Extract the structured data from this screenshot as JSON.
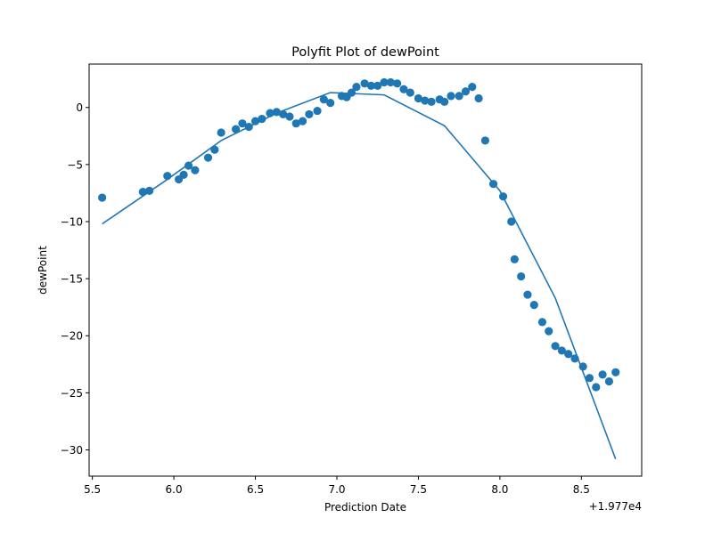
{
  "chart_data": {
    "type": "scatter",
    "title": "Polyfit Plot of dewPoint",
    "xlabel": "Prediction Date",
    "ylabel": "dewPoint",
    "x_offset_label": "+1.977e4",
    "xlim": [
      5.48,
      8.87
    ],
    "ylim": [
      -32.3,
      3.8
    ],
    "x_ticks": [
      5.5,
      6.0,
      6.5,
      7.0,
      7.5,
      8.0,
      8.5
    ],
    "x_tick_labels": [
      "5.5",
      "6.0",
      "6.5",
      "7.0",
      "7.5",
      "8.0",
      "8.5"
    ],
    "y_ticks": [
      0,
      -5,
      -10,
      -15,
      -20,
      -25,
      -30
    ],
    "y_tick_labels": [
      "0",
      "−5",
      "−10",
      "−15",
      "−20",
      "−25",
      "−30"
    ],
    "grid": false,
    "colors": {
      "series": "#1f77b4",
      "axes": "#000000"
    },
    "series": [
      {
        "kind": "scatter",
        "x": [
          5.56,
          5.81,
          5.85,
          5.96,
          6.03,
          6.06,
          6.09,
          6.13,
          6.21,
          6.25,
          6.29,
          6.38,
          6.42,
          6.46,
          6.5,
          6.54,
          6.59,
          6.63,
          6.67,
          6.71,
          6.75,
          6.79,
          6.83,
          6.88,
          6.92,
          6.96,
          7.03,
          7.06,
          7.09,
          7.12,
          7.17,
          7.21,
          7.25,
          7.29,
          7.33,
          7.37,
          7.41,
          7.45,
          7.5,
          7.54,
          7.58,
          7.63,
          7.66,
          7.7,
          7.75,
          7.79,
          7.83,
          7.87,
          7.91,
          7.96,
          8.02,
          8.07,
          8.09,
          8.13,
          8.17,
          8.21,
          8.26,
          8.3,
          8.34,
          8.38,
          8.42,
          8.46,
          8.51,
          8.55,
          8.59,
          8.63,
          8.67,
          8.71
        ],
        "y": [
          -7.9,
          -7.4,
          -7.3,
          -6.0,
          -6.3,
          -5.9,
          -5.1,
          -5.5,
          -4.4,
          -3.7,
          -2.2,
          -1.9,
          -1.4,
          -1.7,
          -1.2,
          -1.0,
          -0.5,
          -0.4,
          -0.6,
          -0.8,
          -1.4,
          -1.2,
          -0.6,
          -0.3,
          0.7,
          0.4,
          1.0,
          0.9,
          1.3,
          1.8,
          2.1,
          1.9,
          1.9,
          2.2,
          2.2,
          2.1,
          1.6,
          1.3,
          0.8,
          0.6,
          0.5,
          0.7,
          0.5,
          1.0,
          1.0,
          1.4,
          1.8,
          0.8,
          -2.9,
          -6.7,
          -7.8,
          -10.0,
          -13.3,
          -14.8,
          -16.4,
          -17.3,
          -18.8,
          -19.6,
          -20.9,
          -21.3,
          -21.6,
          -22.0,
          -22.7,
          -23.7,
          -24.5,
          -23.4,
          -24.0,
          -23.2
        ]
      },
      {
        "kind": "line",
        "x": [
          5.56,
          5.96,
          6.29,
          6.63,
          6.96,
          7.29,
          7.66,
          8.0,
          8.34,
          8.71
        ],
        "y": [
          -10.2,
          -6.3,
          -2.9,
          -0.5,
          1.3,
          1.1,
          -1.6,
          -7.3,
          -16.7,
          -30.8
        ]
      }
    ]
  }
}
